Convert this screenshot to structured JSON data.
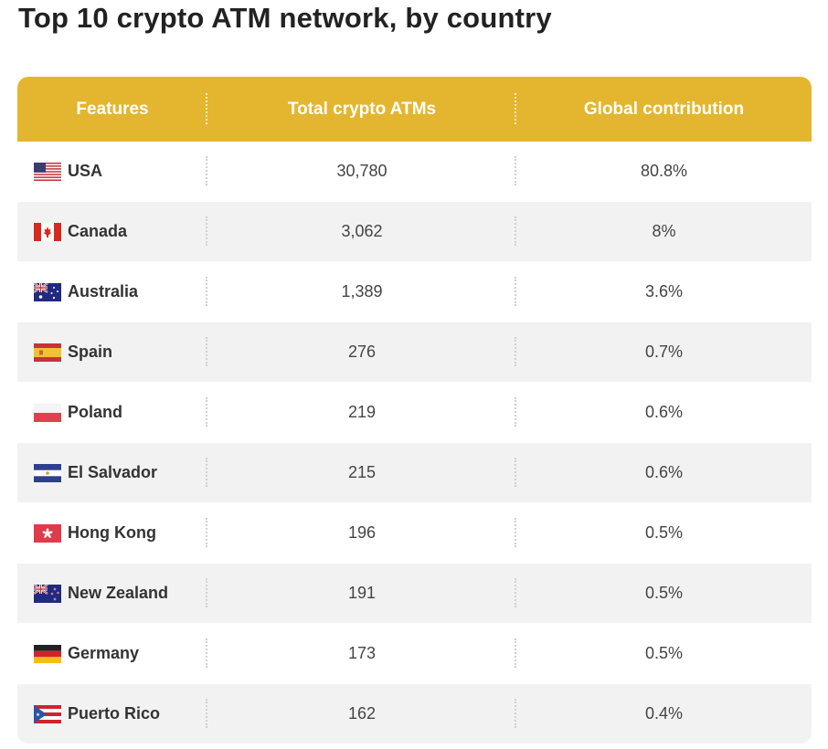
{
  "title": "Top 10 crypto ATM network, by country",
  "table": {
    "headers": [
      "Features",
      "Total crypto ATMs",
      "Global contribution"
    ],
    "header_color": "#E4B52F",
    "rows": [
      {
        "country": "USA",
        "flag": "usa-flag",
        "atms": "30,780",
        "share": "80.8%"
      },
      {
        "country": "Canada",
        "flag": "canada-flag",
        "atms": "3,062",
        "share": "8%"
      },
      {
        "country": "Australia",
        "flag": "australia-flag",
        "atms": "1,389",
        "share": "3.6%"
      },
      {
        "country": "Spain",
        "flag": "spain-flag",
        "atms": "276",
        "share": "0.7%"
      },
      {
        "country": "Poland",
        "flag": "poland-flag",
        "atms": "219",
        "share": "0.6%"
      },
      {
        "country": "El Salvador",
        "flag": "el-salvador-flag",
        "atms": "215",
        "share": "0.6%"
      },
      {
        "country": "Hong Kong",
        "flag": "hong-kong-flag",
        "atms": "196",
        "share": "0.5%"
      },
      {
        "country": "New Zealand",
        "flag": "new-zealand-flag",
        "atms": "191",
        "share": "0.5%"
      },
      {
        "country": "Germany",
        "flag": "germany-flag",
        "atms": "173",
        "share": "0.5%"
      },
      {
        "country": "Puerto Rico",
        "flag": "puerto-rico-flag",
        "atms": "162",
        "share": "0.4%"
      }
    ]
  }
}
